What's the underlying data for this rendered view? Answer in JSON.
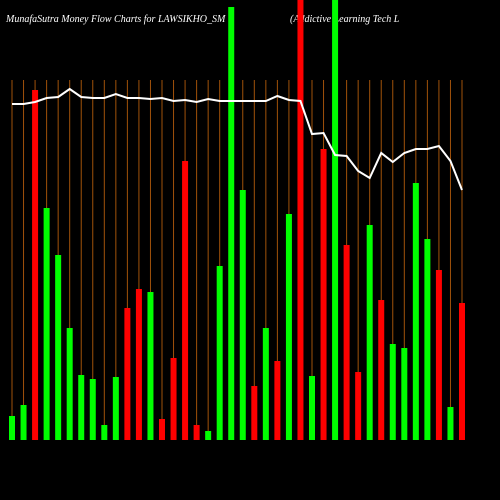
{
  "chart_data": {
    "type": "bar-line",
    "title": "MunafaSutra  Money Flow  Charts for LAWSIKHO_SM",
    "subtitle": "(Addictive Learning Tech L",
    "ylim": [
      0,
      440
    ],
    "bar_values": [
      24,
      35,
      350,
      232,
      185,
      112,
      65,
      61,
      15,
      63,
      132,
      151,
      148,
      21,
      82,
      279,
      15,
      9,
      174,
      433,
      250,
      54,
      112,
      79,
      226,
      440,
      64,
      291,
      440,
      195,
      68,
      215,
      140,
      96,
      92,
      257,
      201,
      170,
      33,
      137
    ],
    "bar_colors": [
      "#00ff00",
      "#00ff00",
      "#ff0000",
      "#00ff00",
      "#00ff00",
      "#00ff00",
      "#00ff00",
      "#00ff00",
      "#00ff00",
      "#00ff00",
      "#ff0000",
      "#ff0000",
      "#00ff00",
      "#ff0000",
      "#ff0000",
      "#ff0000",
      "#ff0000",
      "#00ff00",
      "#00ff00",
      "#00ff00",
      "#00ff00",
      "#ff0000",
      "#00ff00",
      "#ff0000",
      "#00ff00",
      "#ff0000",
      "#00ff00",
      "#ff0000",
      "#00ff00",
      "#ff0000",
      "#ff0000",
      "#00ff00",
      "#ff0000",
      "#00ff00",
      "#00ff00",
      "#00ff00",
      "#00ff00",
      "#ff0000",
      "#00ff00",
      "#ff0000"
    ],
    "line_values": [
      336,
      336,
      338,
      342,
      343,
      351,
      343,
      342,
      342,
      346,
      342,
      342,
      341,
      342,
      339,
      340,
      338,
      341,
      339,
      339,
      339,
      339,
      339,
      344,
      340,
      339,
      306,
      307,
      285,
      284,
      269,
      262,
      287,
      278,
      287,
      291,
      291,
      294,
      279,
      250
    ],
    "line_color": "#ffffff",
    "grid_color": "#a0520a"
  }
}
